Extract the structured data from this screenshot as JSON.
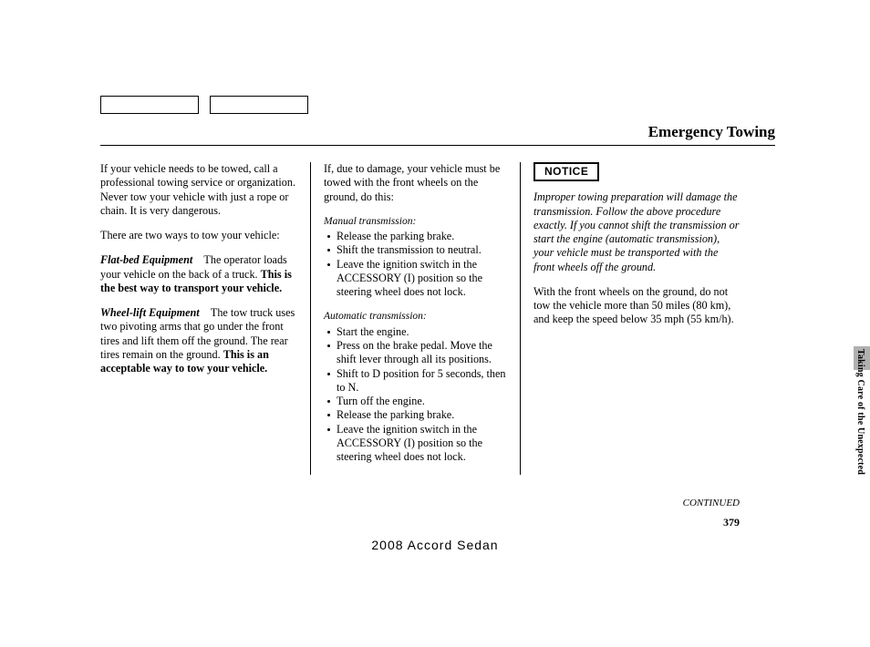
{
  "header": {
    "title": "Emergency Towing"
  },
  "col1": {
    "p1": "If your vehicle needs to be towed, call a professional towing service or organization. Never tow your vehicle with just a rope or chain. It is very dangerous.",
    "p2": "There are two ways to tow your vehicle:",
    "flatbed_label": "Flat-bed Equipment",
    "flatbed_gap": " — ",
    "flatbed_text": "The operator loads your vehicle on the back of a truck. ",
    "flatbed_bold": "This is the best way to transport your vehicle.",
    "wheellift_label": "Wheel-lift Equipment",
    "wheellift_gap": " — ",
    "wheellift_text": "The tow truck uses two pivoting arms that go under the front tires and lift them off the ground. The rear tires remain on the ground. ",
    "wheellift_bold": "This is an acceptable way to tow your vehicle."
  },
  "col2": {
    "p1": "If, due to damage, your vehicle must be towed with the front wheels on the ground, do this:",
    "manual_label": "Manual transmission:",
    "manual_items": [
      "Release the parking brake.",
      "Shift the transmission to neutral.",
      "Leave the ignition switch in the ACCESSORY (I) position so the steering wheel does not lock."
    ],
    "auto_label": "Automatic transmission:",
    "auto_items": [
      "Start the engine.",
      "Press on the brake pedal. Move the shift lever through all its positions.",
      "Shift to D position for 5 seconds, then to N.",
      "Turn off the engine.",
      "Release the parking brake.",
      "Leave the ignition switch in the ACCESSORY (I) position so the steering wheel does not lock."
    ]
  },
  "col3": {
    "notice": "NOTICE",
    "notice_text": "Improper towing preparation will damage the transmission. Follow the above procedure exactly. If you cannot shift the transmission or start the engine (automatic transmission), your vehicle must be transported with the front wheels off the ground.",
    "p2": "With the front wheels on the ground, do not tow the vehicle more than 50 miles (80 km), and keep the speed below 35 mph (55 km/h).",
    "continued": "CONTINUED"
  },
  "side": {
    "section": "Taking Care of the Unexpected"
  },
  "footer": {
    "model": "2008  Accord  Sedan",
    "page": "379"
  },
  "style": {
    "text_color": "#000000",
    "background": "#ffffff",
    "tab_color": "#b0b0b0"
  }
}
